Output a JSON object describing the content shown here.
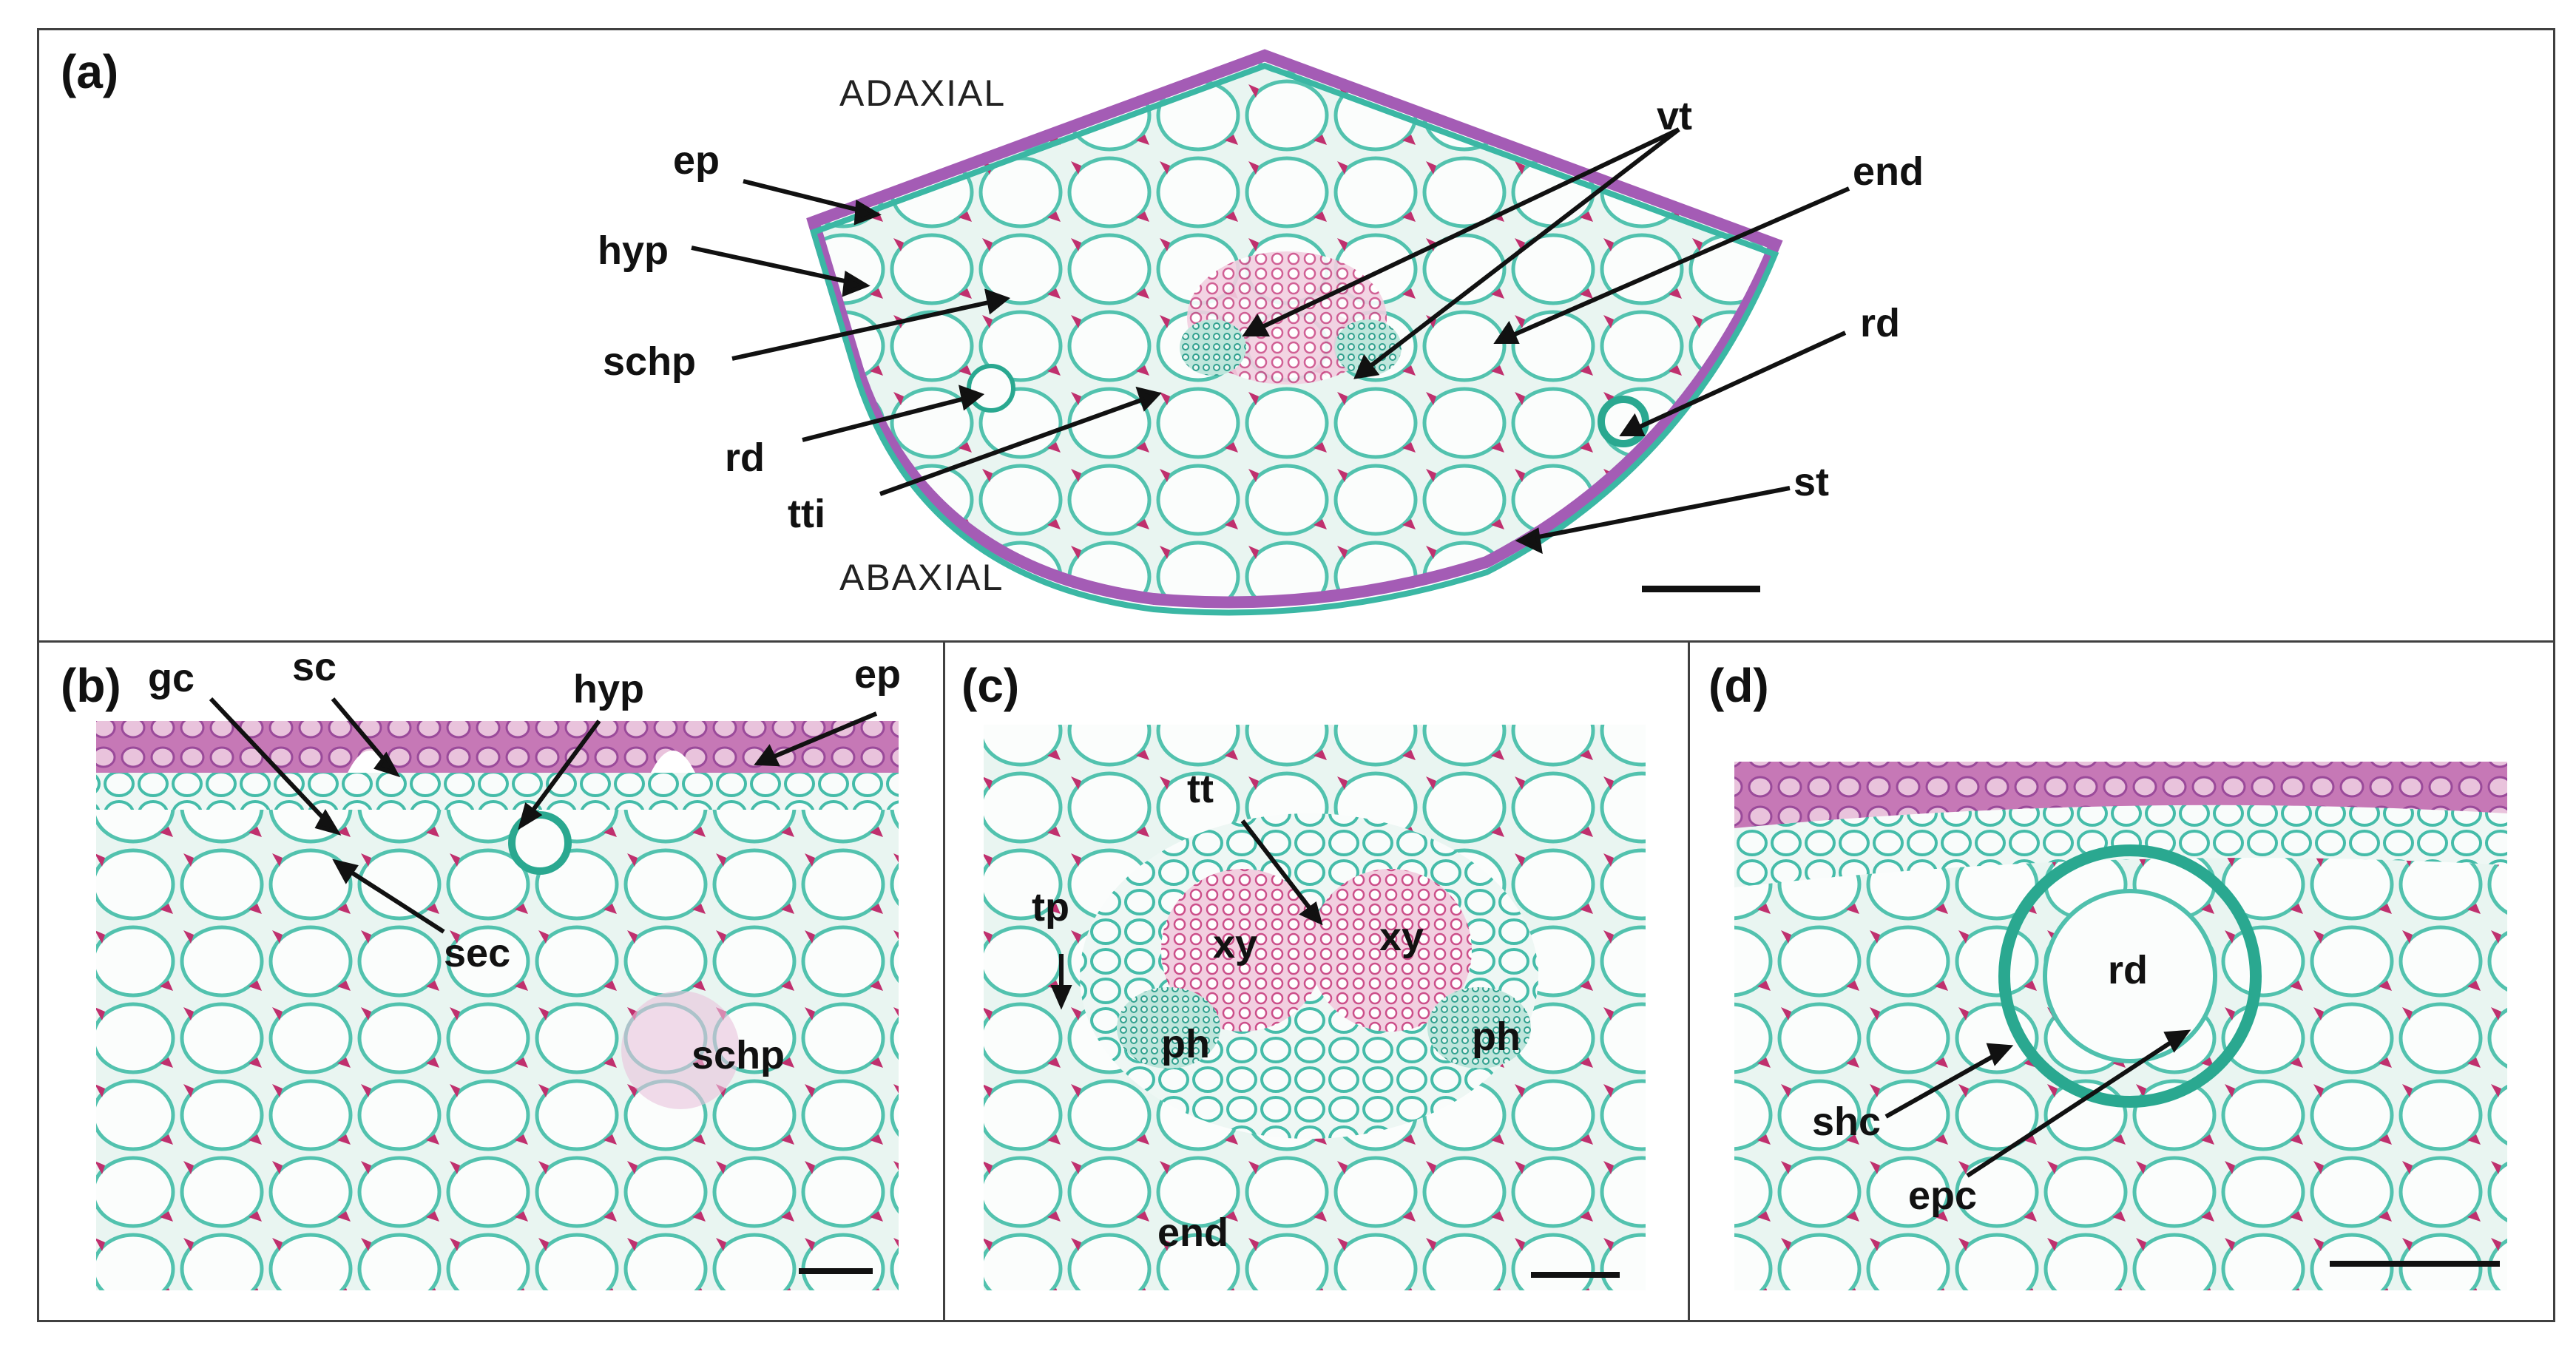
{
  "panels": {
    "a": {
      "letter": "(a)",
      "orientation": {
        "top": "ADAXIAL",
        "bottom": "ABAXIAL"
      },
      "labels": {
        "ep": "ep",
        "hyp": "hyp",
        "schp": "schp",
        "rd_left": "rd",
        "tti": "tti",
        "vt": "vt",
        "end": "end",
        "rd_right": "rd",
        "st": "st"
      }
    },
    "b": {
      "letter": "(b)",
      "labels": {
        "gc": "gc",
        "sc": "sc",
        "hyp": "hyp",
        "ep": "ep",
        "sec": "sec",
        "schp": "schp"
      }
    },
    "c": {
      "letter": "(c)",
      "labels": {
        "tt": "tt",
        "tp": "tp",
        "xy_left": "xy",
        "xy_right": "xy",
        "ph_left": "ph",
        "ph_right": "ph",
        "end": "end"
      }
    },
    "d": {
      "letter": "(d)",
      "labels": {
        "rd": "rd",
        "shc": "shc",
        "epc": "epc"
      }
    }
  },
  "colors": {
    "cell_wall_green": "#36b8a8",
    "stain_magenta": "#c0306e",
    "epidermis_purple": "#a060b8",
    "tissue_background": "#e8f4f0"
  }
}
